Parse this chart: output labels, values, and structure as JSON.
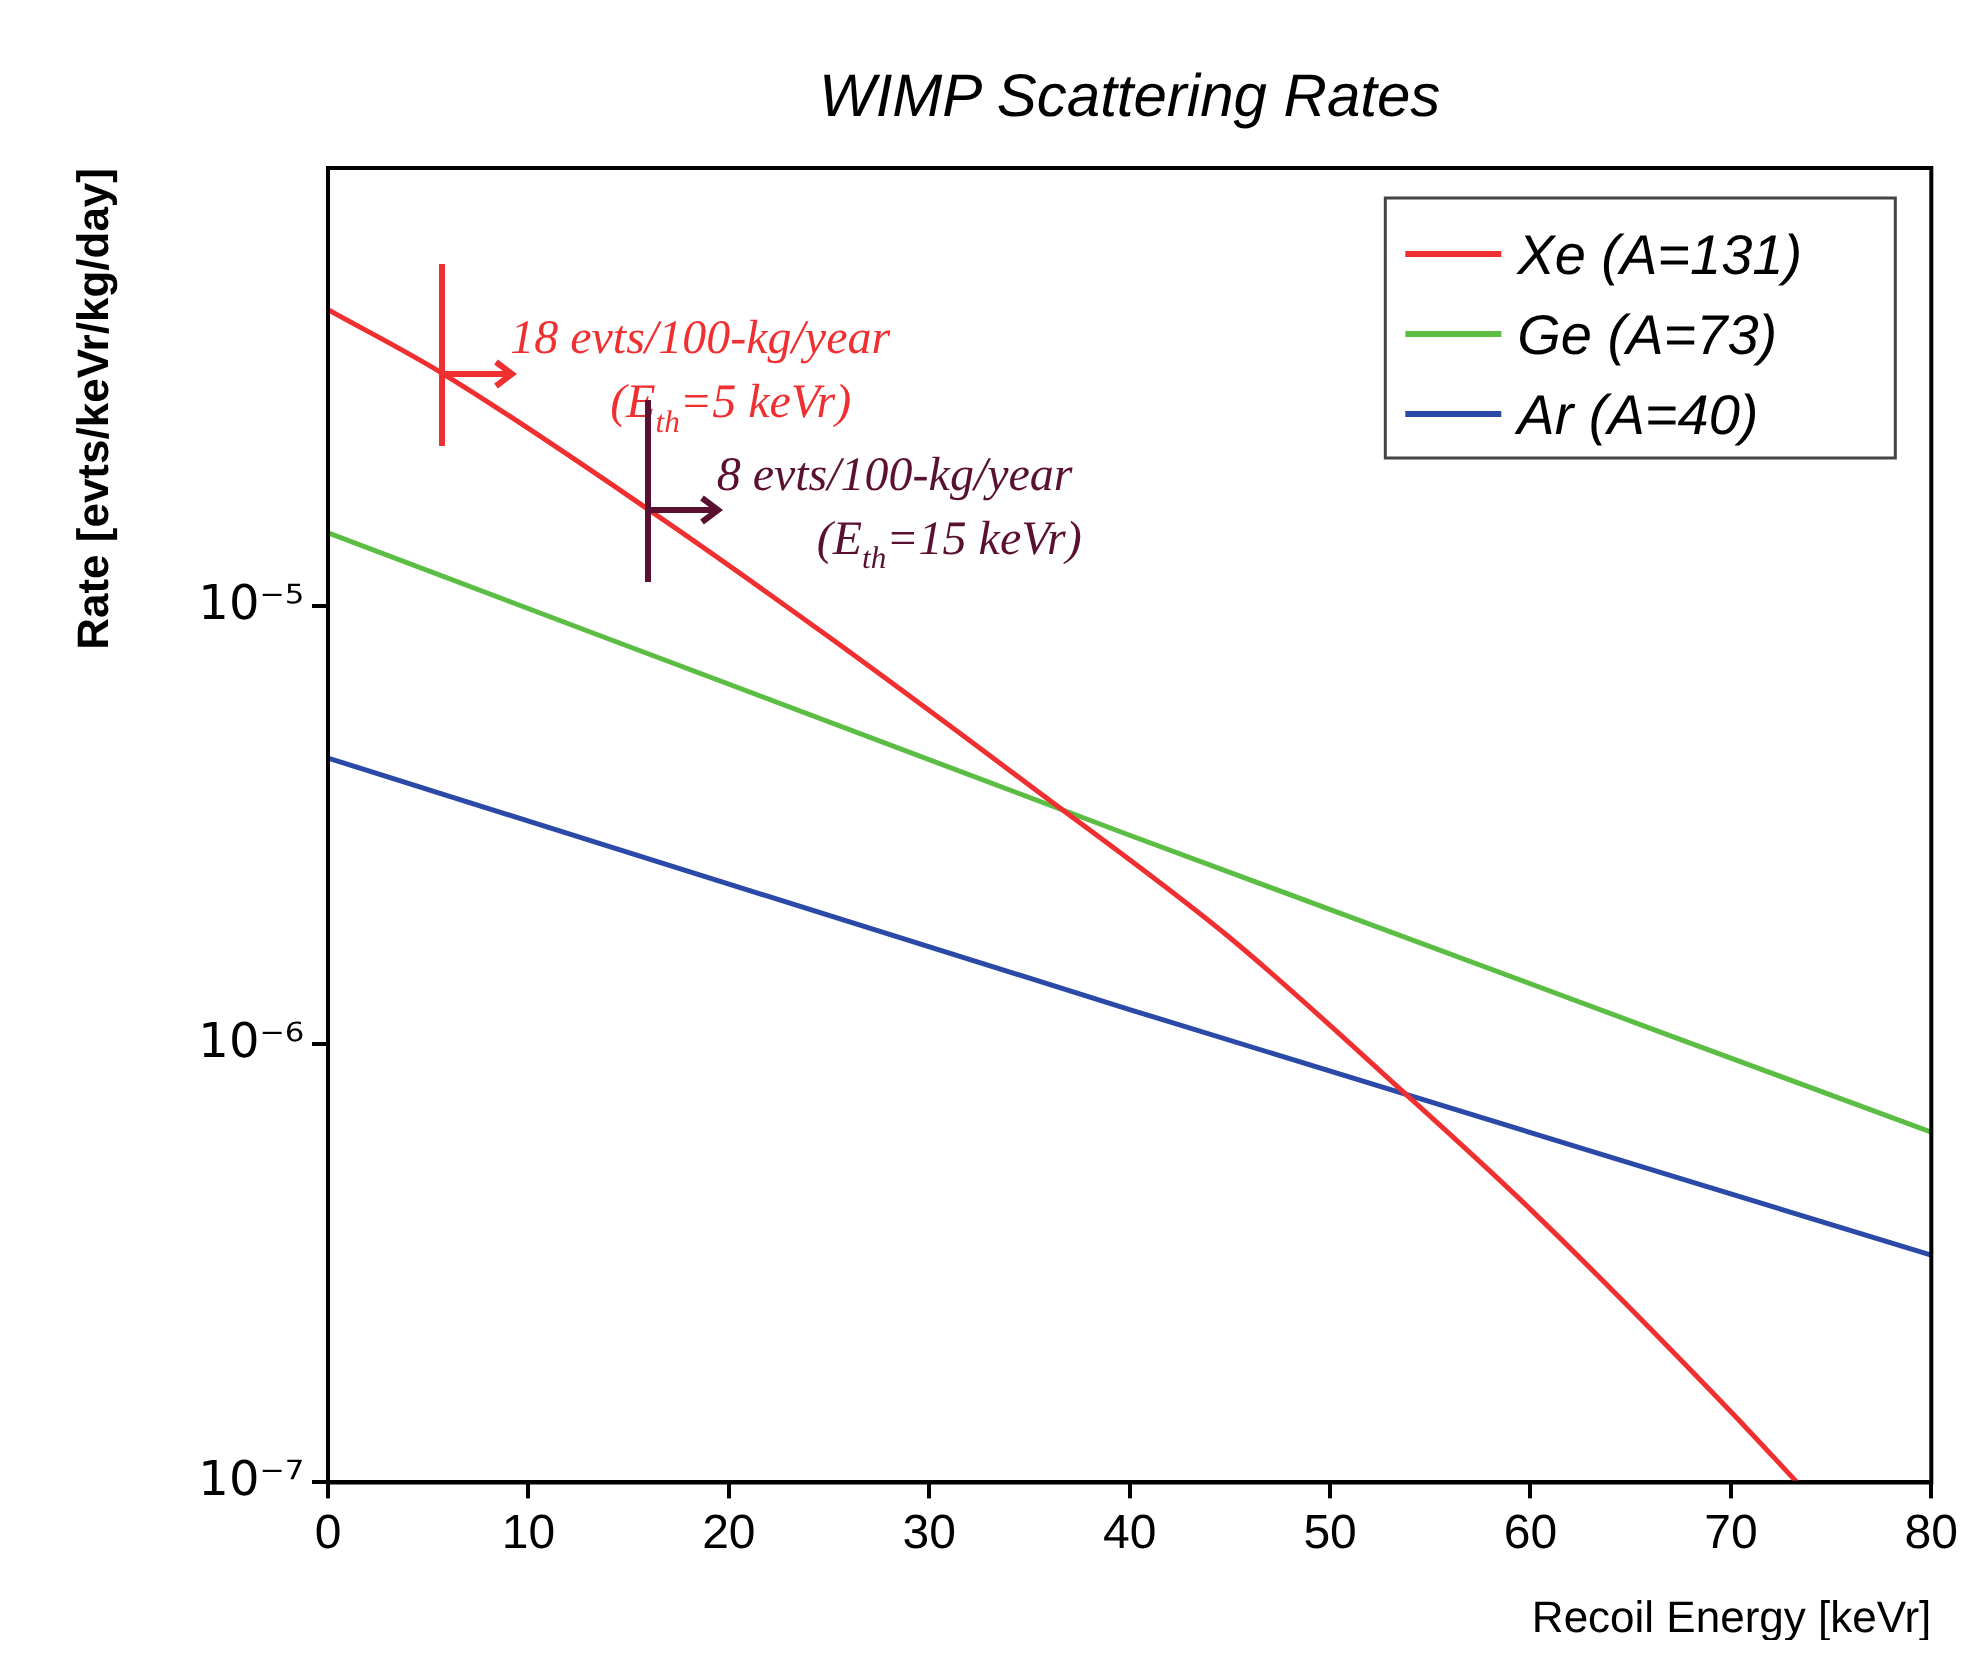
{
  "chart_data": {
    "type": "line",
    "title": "WIMP Scattering Rates",
    "xlabel": "Recoil Energy [keVr]",
    "ylabel": "Rate [evts/keVr/kg/day]",
    "log": "y",
    "grid": false,
    "legend": "top right",
    "marker": "none",
    "line_style": "solid",
    "xlim": [
      0,
      80
    ],
    "ylim": [
      1e-07,
      0.0001
    ],
    "xticks": [
      0,
      10,
      20,
      30,
      40,
      50,
      60,
      70,
      80
    ],
    "yticks": [
      {
        "value": 1e-07,
        "label": "10⁻⁷"
      },
      {
        "value": 1e-06,
        "label": "10⁻⁶"
      },
      {
        "value": 1e-05,
        "label": "10⁻⁵"
      }
    ],
    "series": [
      {
        "name": "Xe (A=131)",
        "color": "#f03030",
        "x": [
          0,
          5.7,
          16,
          25,
          35,
          45,
          53.5,
          60,
          70,
          73.3
        ],
        "values": [
          4.75e-05,
          3.4e-05,
          1.66e-05,
          8.5e-06,
          3.9e-06,
          1.75e-06,
          7.9e-07,
          4.2e-07,
          1.45e-07,
          1e-07
        ]
      },
      {
        "name": "Ge (A=73)",
        "color": "#5cbd45",
        "x": [
          0,
          40,
          80
        ],
        "values": [
          1.47e-05,
          3e-06,
          6.3e-07
        ]
      },
      {
        "name": "Ar (A=40)",
        "color": "#2b4aa8",
        "x": [
          0,
          40,
          80
        ],
        "values": [
          4.5e-06,
          1.2e-06,
          3.3e-07
        ]
      }
    ],
    "annotations": [
      {
        "text": "18 evts/100-kg/year (E$_{th}$=5 keVr)",
        "x": 5.7,
        "y": 3.4e-05
      },
      {
        "text": "8 evts/100-kg/year (E$_{th}$=15 keVr)",
        "x": 16,
        "y": 1.66e-05
      }
    ]
  }
}
